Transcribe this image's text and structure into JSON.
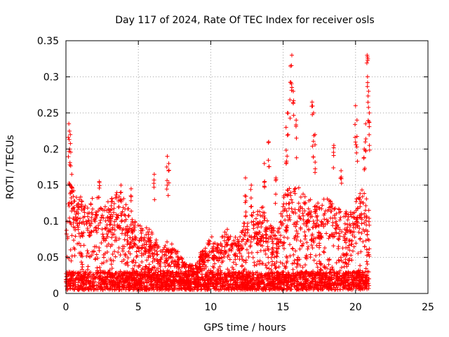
{
  "chart_data": {
    "type": "scatter",
    "title": "Day 117 of 2024, Rate Of TEC Index for receiver osls",
    "xlabel": "GPS time / hours",
    "ylabel": "ROTI / TECUs",
    "xlim": [
      0,
      25
    ],
    "ylim": [
      0,
      0.35
    ],
    "x_ticks": [
      "0",
      "5",
      "10",
      "15",
      "20",
      "25"
    ],
    "y_ticks": [
      "0",
      "0.05",
      "0.1",
      "0.15",
      "0.2",
      "0.25",
      "0.3",
      "0.35"
    ],
    "grid": true,
    "marker": "plus",
    "color": "#ff0000",
    "envelope": [
      [
        0.0,
        0.08
      ],
      [
        0.25,
        0.16
      ],
      [
        0.5,
        0.14
      ],
      [
        1.0,
        0.13
      ],
      [
        1.5,
        0.12
      ],
      [
        2.0,
        0.14
      ],
      [
        2.5,
        0.12
      ],
      [
        3.0,
        0.13
      ],
      [
        3.5,
        0.14
      ],
      [
        4.0,
        0.13
      ],
      [
        4.5,
        0.11
      ],
      [
        5.0,
        0.09
      ],
      [
        5.5,
        0.09
      ],
      [
        6.0,
        0.08
      ],
      [
        6.5,
        0.06
      ],
      [
        7.0,
        0.07
      ],
      [
        7.5,
        0.06
      ],
      [
        8.0,
        0.05
      ],
      [
        8.5,
        0.04
      ],
      [
        9.0,
        0.04
      ],
      [
        9.5,
        0.06
      ],
      [
        10.0,
        0.08
      ],
      [
        10.5,
        0.07
      ],
      [
        11.0,
        0.09
      ],
      [
        11.5,
        0.07
      ],
      [
        12.0,
        0.08
      ],
      [
        12.5,
        0.12
      ],
      [
        13.0,
        0.11
      ],
      [
        13.5,
        0.12
      ],
      [
        14.0,
        0.1
      ],
      [
        14.5,
        0.08
      ],
      [
        15.0,
        0.13
      ],
      [
        15.5,
        0.15
      ],
      [
        16.0,
        0.15
      ],
      [
        16.5,
        0.13
      ],
      [
        17.0,
        0.13
      ],
      [
        17.5,
        0.12
      ],
      [
        18.0,
        0.13
      ],
      [
        18.5,
        0.13
      ],
      [
        19.0,
        0.12
      ],
      [
        19.5,
        0.11
      ],
      [
        20.0,
        0.13
      ],
      [
        20.5,
        0.14
      ],
      [
        20.95,
        0.12
      ]
    ],
    "spikes": [
      [
        0.2,
        0.235
      ],
      [
        0.3,
        0.22
      ],
      [
        0.25,
        0.2
      ],
      [
        0.4,
        0.165
      ],
      [
        2.3,
        0.155
      ],
      [
        3.8,
        0.15
      ],
      [
        4.5,
        0.145
      ],
      [
        6.1,
        0.165
      ],
      [
        7.0,
        0.19
      ],
      [
        7.1,
        0.18
      ],
      [
        12.4,
        0.16
      ],
      [
        12.8,
        0.15
      ],
      [
        13.7,
        0.18
      ],
      [
        14.0,
        0.21
      ],
      [
        14.5,
        0.16
      ],
      [
        15.2,
        0.23
      ],
      [
        15.3,
        0.25
      ],
      [
        15.6,
        0.33
      ],
      [
        15.5,
        0.315
      ],
      [
        15.7,
        0.28
      ],
      [
        15.9,
        0.24
      ],
      [
        17.0,
        0.265
      ],
      [
        17.1,
        0.25
      ],
      [
        17.2,
        0.22
      ],
      [
        18.5,
        0.205
      ],
      [
        19.0,
        0.17
      ],
      [
        20.0,
        0.26
      ],
      [
        20.1,
        0.24
      ],
      [
        20.7,
        0.235
      ],
      [
        20.8,
        0.33
      ],
      [
        20.85,
        0.325
      ],
      [
        20.9,
        0.28
      ],
      [
        20.95,
        0.25
      ],
      [
        20.6,
        0.2
      ]
    ]
  }
}
